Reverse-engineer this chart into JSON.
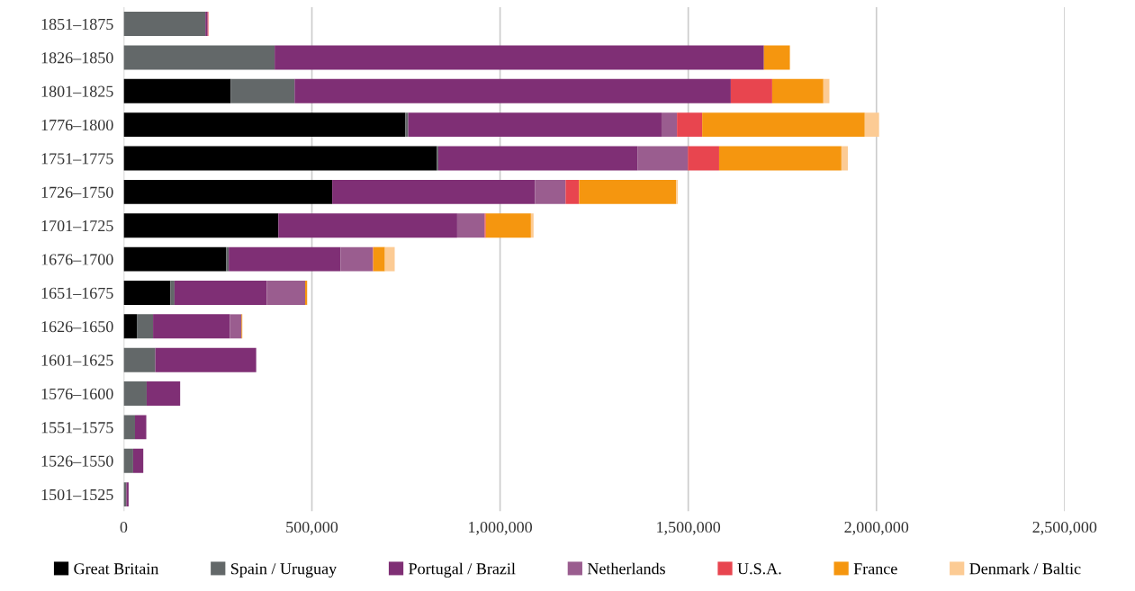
{
  "chart_data": {
    "type": "bar",
    "orientation": "horizontal",
    "stacked": true,
    "categories": [
      "1851–1875",
      "1826–1850",
      "1801–1825",
      "1776–1800",
      "1751–1775",
      "1726–1750",
      "1701–1725",
      "1676–1700",
      "1651–1675",
      "1626–1650",
      "1601–1625",
      "1576–1600",
      "1551–1575",
      "1526–1550",
      "1501–1525"
    ],
    "series": [
      {
        "name": "Great Britain",
        "color": "#000000",
        "values": [
          null,
          null,
          284000,
          748000,
          832000,
          554000,
          411000,
          272000,
          124000,
          35000,
          null,
          null,
          null,
          null,
          null
        ]
      },
      {
        "name": "Spain / Uruguay",
        "color": "#636869",
        "values": [
          217000,
          401000,
          170000,
          8000,
          4000,
          null,
          null,
          7000,
          11000,
          43000,
          84000,
          61000,
          30000,
          25000,
          7000
        ]
      },
      {
        "name": "Portugal / Brazil",
        "color": "#7f2f75",
        "values": [
          6000,
          1300000,
          1159000,
          673000,
          529000,
          539000,
          475000,
          297000,
          245000,
          204000,
          268000,
          89000,
          30000,
          27000,
          6000
        ]
      },
      {
        "name": "Netherlands",
        "color": "#9a5d8f",
        "values": [
          null,
          null,
          null,
          41000,
          134000,
          81000,
          73000,
          86000,
          102000,
          31000,
          null,
          null,
          null,
          null,
          null
        ]
      },
      {
        "name": "U.S.A.",
        "color": "#e8454f",
        "values": [
          2000,
          null,
          110000,
          67000,
          83000,
          36000,
          3000,
          1000,
          null,
          null,
          null,
          null,
          null,
          null,
          null
        ]
      },
      {
        "name": "France",
        "color": "#f5960f",
        "values": [
          null,
          69000,
          136000,
          432000,
          325000,
          258000,
          120000,
          31000,
          5000,
          2000,
          null,
          null,
          null,
          null,
          null
        ]
      },
      {
        "name": "Denmark / Baltic",
        "color": "#fccb94",
        "values": [
          null,
          null,
          16000,
          38000,
          17000,
          4000,
          7000,
          26000,
          1000,
          null,
          null,
          null,
          null,
          null,
          null
        ]
      }
    ],
    "xlim": [
      0,
      2500000
    ],
    "xticks": [
      {
        "value": 0,
        "label": "0"
      },
      {
        "value": 500000,
        "label": "500,000"
      },
      {
        "value": 1000000,
        "label": "1,000,000"
      },
      {
        "value": 1500000,
        "label": "1,500,000"
      },
      {
        "value": 2000000,
        "label": "2,000,000"
      },
      {
        "value": 2500000,
        "label": "2,500,000"
      }
    ],
    "grid": "x",
    "legend": "bottom"
  }
}
